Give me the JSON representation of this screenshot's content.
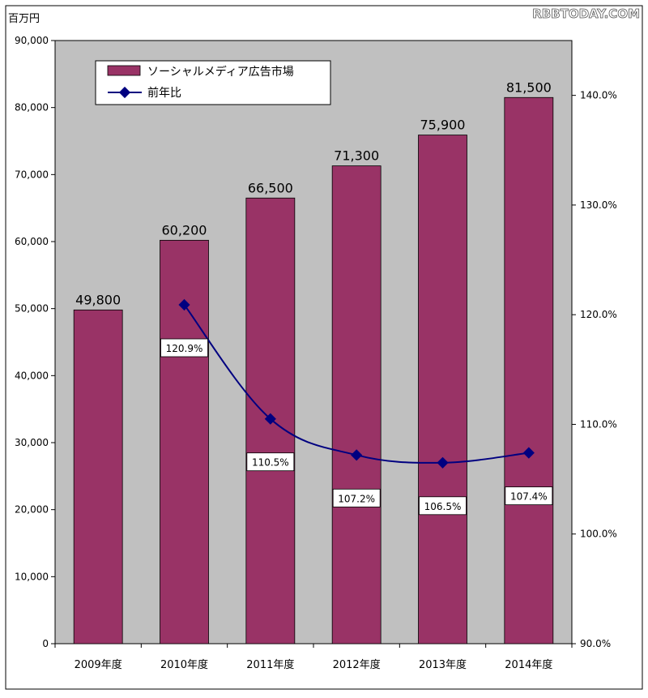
{
  "watermark": "RBBTODAY.COM",
  "chart_data": {
    "type": "bar",
    "unit_label": "百万円",
    "categories": [
      "2009年度",
      "2010年度",
      "2011年度",
      "2012年度",
      "2013年度",
      "2014年度"
    ],
    "series": [
      {
        "name": "ソーシャルメディア広告市場",
        "type": "bar",
        "axis": "left",
        "color": "#993366",
        "values": [
          49800,
          60200,
          66500,
          71300,
          75900,
          81500
        ],
        "labels": [
          "49,800",
          "60,200",
          "66,500",
          "71,300",
          "75,900",
          "81,500"
        ]
      },
      {
        "name": "前年比",
        "type": "line",
        "axis": "right",
        "color": "#000080",
        "values": [
          null,
          120.9,
          110.5,
          107.2,
          106.5,
          107.4
        ],
        "labels": [
          "",
          "120.9%",
          "110.5%",
          "107.2%",
          "106.5%",
          "107.4%"
        ]
      }
    ],
    "left_axis": {
      "ylim": [
        0,
        90000
      ],
      "ticks": [
        0,
        10000,
        20000,
        30000,
        40000,
        50000,
        60000,
        70000,
        80000,
        90000
      ],
      "tick_labels": [
        "0",
        "10,000",
        "20,000",
        "30,000",
        "40,000",
        "50,000",
        "60,000",
        "70,000",
        "80,000",
        "90,000"
      ]
    },
    "right_axis": {
      "ylim": [
        90,
        145
      ],
      "ticks": [
        90,
        100,
        110,
        120,
        130,
        140
      ],
      "tick_labels": [
        "90.0%",
        "100.0%",
        "110.0%",
        "120.0%",
        "130.0%",
        "140.0%"
      ]
    },
    "grid": false,
    "legend_position": "top-left",
    "plot_background": "#c0c0c0"
  }
}
